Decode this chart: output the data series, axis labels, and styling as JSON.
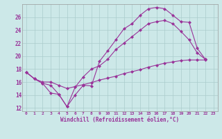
{
  "xlabel": "Windchill (Refroidissement éolien,°C)",
  "bg_color": "#cce8e8",
  "grid_color": "#aacccc",
  "line_color": "#993399",
  "xlim": [
    -0.5,
    23.5
  ],
  "ylim": [
    11.5,
    28.0
  ],
  "xticks": [
    0,
    1,
    2,
    3,
    4,
    5,
    6,
    7,
    8,
    9,
    10,
    11,
    12,
    13,
    14,
    15,
    16,
    17,
    18,
    19,
    20,
    21,
    22,
    23
  ],
  "yticks": [
    12,
    14,
    16,
    18,
    20,
    22,
    24,
    26
  ],
  "line1_x": [
    0,
    1,
    2,
    3,
    4,
    5,
    6,
    7,
    8,
    9,
    10,
    11,
    12,
    13,
    14,
    15,
    16,
    17,
    18,
    19,
    20,
    21,
    22
  ],
  "line1_y": [
    17.5,
    16.5,
    15.8,
    14.3,
    14.1,
    12.2,
    14.0,
    15.5,
    15.4,
    19.2,
    20.8,
    22.5,
    24.2,
    25.0,
    26.3,
    27.3,
    27.5,
    27.3,
    26.3,
    25.3,
    25.2,
    21.2,
    19.5
  ],
  "line2_x": [
    0,
    1,
    2,
    3,
    4,
    5,
    6,
    7,
    8,
    9,
    10,
    11,
    12,
    13,
    14,
    15,
    16,
    17,
    18,
    19,
    20,
    21,
    22,
    23
  ],
  "line2_y": [
    17.5,
    16.5,
    15.8,
    15.5,
    14.1,
    12.2,
    15.2,
    16.8,
    18.0,
    18.5,
    19.5,
    21.0,
    22.0,
    23.0,
    24.0,
    25.0,
    25.3,
    25.5,
    25.0,
    23.8,
    22.5,
    20.5,
    19.5,
    null
  ],
  "line3_x": [
    0,
    1,
    2,
    3,
    4,
    5,
    6,
    7,
    8,
    9,
    10,
    11,
    12,
    13,
    14,
    15,
    16,
    17,
    18,
    19,
    20,
    21,
    22,
    23
  ],
  "line3_y": [
    17.5,
    16.5,
    16.0,
    16.0,
    15.5,
    15.0,
    15.3,
    15.6,
    15.9,
    16.3,
    16.6,
    16.9,
    17.3,
    17.6,
    17.9,
    18.3,
    18.6,
    18.9,
    19.1,
    19.3,
    19.4,
    19.4,
    19.4,
    null
  ]
}
